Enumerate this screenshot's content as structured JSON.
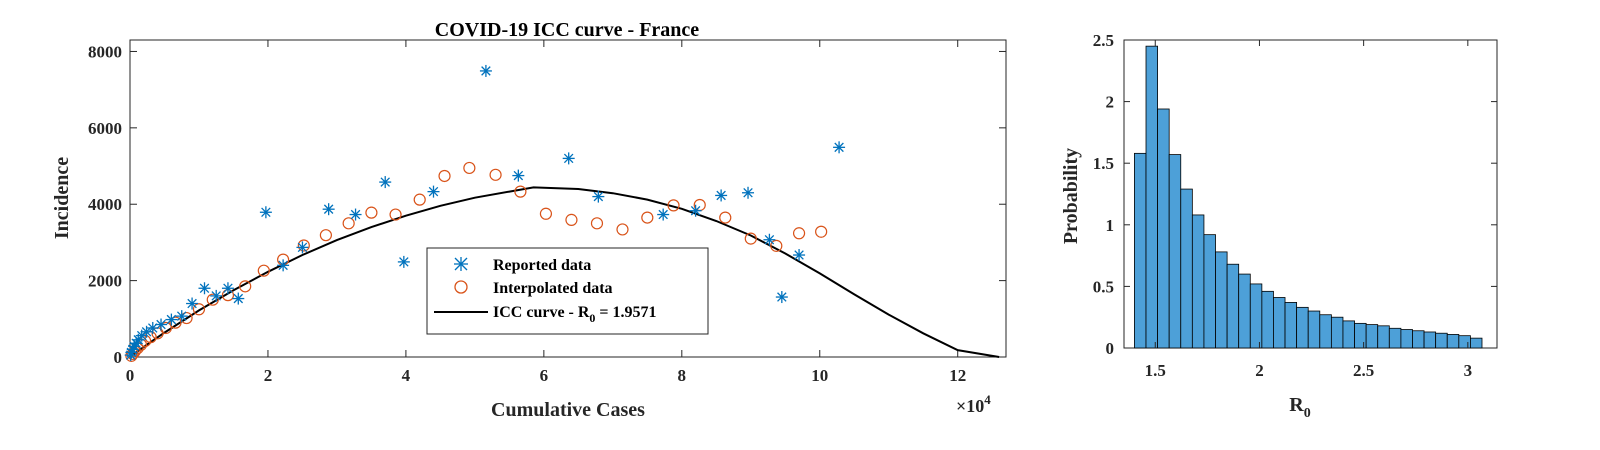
{
  "chart_data": [
    {
      "type": "scatter",
      "title": "COVID-19 ICC curve - France",
      "xlabel": "Cumulative Cases",
      "ylabel": "Incidence",
      "x_exponent_label": "×10",
      "x_exponent_power": "4",
      "xlim": [
        0,
        12.7
      ],
      "ylim": [
        0,
        8300
      ],
      "x_unit_multiplier": 10000,
      "xticks": [
        0,
        2,
        4,
        6,
        8,
        10,
        12
      ],
      "xtick_labels": [
        "0",
        "2",
        "4",
        "6",
        "8",
        "10",
        "12"
      ],
      "yticks": [
        0,
        2000,
        4000,
        6000,
        8000
      ],
      "ytick_labels": [
        "0",
        "2000",
        "4000",
        "6000",
        "8000"
      ],
      "legend": {
        "position": "bottom-center",
        "entries": [
          {
            "key": "reported",
            "label": "Reported data"
          },
          {
            "key": "interpolated",
            "label": "Interpolated data"
          },
          {
            "key": "icc",
            "label_prefix": "ICC curve - R",
            "label_sub": "0",
            "label_suffix": " = 1.9571"
          }
        ]
      },
      "series": [
        {
          "name": "Reported data",
          "marker": "asterisk",
          "color": "#0072BD",
          "x": [
            0.01,
            0.02,
            0.04,
            0.06,
            0.09,
            0.12,
            0.17,
            0.24,
            0.33,
            0.45,
            0.6,
            0.75,
            0.9,
            1.08,
            1.25,
            1.42,
            1.57,
            1.97,
            2.22,
            2.5,
            2.88,
            3.27,
            3.7,
            3.97,
            4.4,
            5.16,
            5.63,
            6.36,
            6.79,
            7.73,
            8.2,
            8.57,
            8.96,
            9.27,
            9.45,
            9.7,
            10.28
          ],
          "y": [
            50,
            120,
            200,
            280,
            360,
            450,
            560,
            660,
            760,
            850,
            980,
            1070,
            1400,
            1800,
            1600,
            1800,
            1530,
            3790,
            2400,
            2870,
            3870,
            3730,
            4580,
            2490,
            4330,
            7490,
            4750,
            5200,
            4200,
            3730,
            3830,
            4230,
            4300,
            3070,
            1570,
            2670,
            5490
          ]
        },
        {
          "name": "Interpolated data",
          "marker": "circle",
          "color": "#D95319",
          "x": [
            0.02,
            0.04,
            0.07,
            0.11,
            0.16,
            0.22,
            0.3,
            0.4,
            0.52,
            0.66,
            0.82,
            1.0,
            1.2,
            1.42,
            1.67,
            1.94,
            2.22,
            2.52,
            2.84,
            3.17,
            3.5,
            3.85,
            4.2,
            4.56,
            4.92,
            5.3,
            5.66,
            6.03,
            6.4,
            6.77,
            7.14,
            7.5,
            7.88,
            8.26,
            8.63,
            9.0,
            9.37,
            9.7,
            10.02
          ],
          "y": [
            30,
            80,
            150,
            230,
            320,
            420,
            520,
            620,
            760,
            900,
            1020,
            1250,
            1500,
            1620,
            1850,
            2260,
            2550,
            2920,
            3190,
            3500,
            3780,
            3730,
            4120,
            4740,
            4950,
            4770,
            4330,
            3750,
            3590,
            3500,
            3340,
            3650,
            3970,
            3980,
            3650,
            3100,
            2910,
            3240,
            3280
          ]
        },
        {
          "name": "ICC curve - R0 = 1.9571",
          "marker": "line",
          "color": "#000000",
          "x": [
            0,
            0.25,
            0.5,
            1,
            1.5,
            2,
            2.5,
            3,
            3.5,
            4,
            4.5,
            5,
            5.5,
            5.85,
            6.5,
            7,
            7.5,
            8,
            8.5,
            9,
            9.5,
            10,
            10.5,
            11,
            11.5,
            12,
            12.6
          ],
          "y": [
            0,
            330,
            640,
            1220,
            1750,
            2230,
            2670,
            3060,
            3400,
            3700,
            3960,
            4170,
            4330,
            4440,
            4400,
            4290,
            4120,
            3880,
            3560,
            3180,
            2710,
            2190,
            1640,
            1110,
            620,
            180,
            0
          ]
        }
      ]
    },
    {
      "type": "bar",
      "title": "",
      "xlabel_main": "R",
      "xlabel_sub": "0",
      "ylabel": "Probability",
      "xlim": [
        1.35,
        3.14
      ],
      "ylim": [
        0,
        2.5
      ],
      "xticks": [
        1.5,
        2,
        2.5,
        3
      ],
      "xtick_labels": [
        "1.5",
        "2",
        "2.5",
        "3"
      ],
      "yticks": [
        0,
        0.5,
        1,
        1.5,
        2,
        2.5
      ],
      "ytick_labels": [
        "0",
        "0.5",
        "1",
        "1.5",
        "2",
        "2.5"
      ],
      "bar_color": "#4DA0D8",
      "bin_start": 1.4,
      "bin_width": 0.0556,
      "values": [
        1.58,
        2.45,
        1.94,
        1.57,
        1.29,
        1.08,
        0.92,
        0.78,
        0.68,
        0.6,
        0.52,
        0.46,
        0.41,
        0.37,
        0.33,
        0.3,
        0.27,
        0.25,
        0.22,
        0.2,
        0.19,
        0.18,
        0.16,
        0.15,
        0.14,
        0.13,
        0.12,
        0.11,
        0.1,
        0.08
      ]
    }
  ]
}
